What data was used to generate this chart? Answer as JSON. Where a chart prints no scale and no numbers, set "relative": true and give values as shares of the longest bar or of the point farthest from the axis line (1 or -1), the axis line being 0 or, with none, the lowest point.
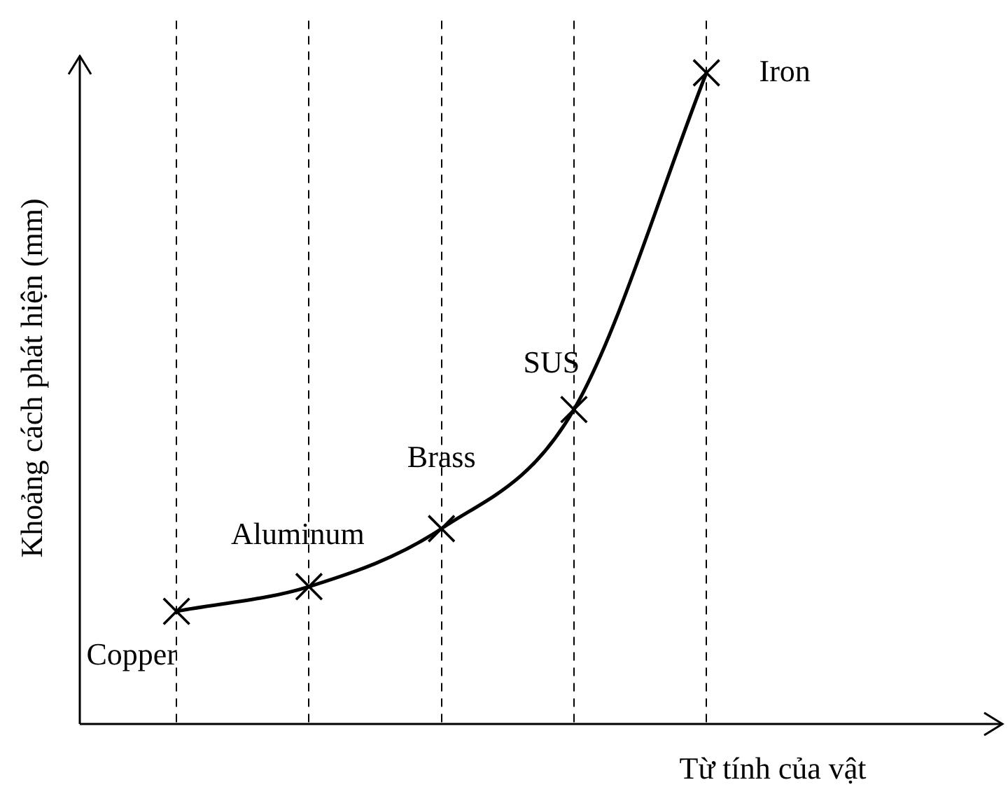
{
  "chart_data": {
    "type": "line",
    "xlabel": "Từ tính của vật",
    "ylabel": "Khoảng cách phát hiện (mm)",
    "categories": [
      null,
      null,
      null,
      null,
      null
    ],
    "series": [
      {
        "color": "#000000",
        "values": [
          0.173,
          0.211,
          0.3,
          0.483,
          1.0
        ]
      }
    ],
    "relative": true,
    "grid": "x",
    "marker": "cross",
    "line_style": "solid",
    "legend": false,
    "annotations": [
      "Copper",
      "Aluminum",
      "Brass",
      "SUS",
      "Iron"
    ]
  }
}
